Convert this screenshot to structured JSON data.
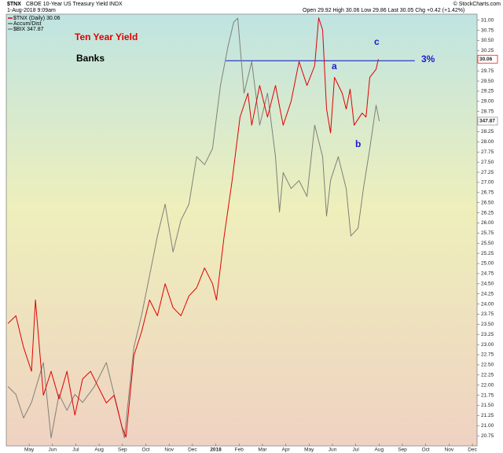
{
  "chart_data": {
    "type": "line",
    "symbol": "$TNX",
    "title": "CBOE 10-Year US Treasury Yield INDX",
    "date": "1-Aug-2018 9:09am",
    "quote": "Open 29.92  High 30.06  Low 29.86  Last 30.05  Chg +0.42 (+1.42%)",
    "credit": "© StockCharts.com",
    "legend_entries": [
      "$TNX (Daily) 30.06",
      "Accum/Dist",
      "$BIX 347.87"
    ],
    "last_value_tags": [
      "30.06",
      "347.87"
    ],
    "annotations": [
      {
        "text": "Ten Year Yield",
        "color": "#e00000"
      },
      {
        "text": "Banks",
        "color": "#000000"
      },
      {
        "text": "a",
        "color": "#1a1ad0"
      },
      {
        "text": "b",
        "color": "#1a1ad0"
      },
      {
        "text": "c",
        "color": "#1a1ad0"
      },
      {
        "text": "3%",
        "color": "#1a1ad0"
      }
    ],
    "reference_line": {
      "value": 30,
      "x": [
        8.43,
        16.53
      ],
      "color": "#2a3acc"
    },
    "xlim": [
      -0.98,
      19.2
    ],
    "xticks": [
      {
        "value": 0,
        "label": "May"
      },
      {
        "value": 1,
        "label": "Jun"
      },
      {
        "value": 2,
        "label": "Jul"
      },
      {
        "value": 3,
        "label": "Aug"
      },
      {
        "value": 4,
        "label": "Sep"
      },
      {
        "value": 5,
        "label": "Oct"
      },
      {
        "value": 6,
        "label": "Nov"
      },
      {
        "value": 7,
        "label": "Dec"
      },
      {
        "value": 8,
        "label": "2018"
      },
      {
        "value": 9,
        "label": "Feb"
      },
      {
        "value": 10,
        "label": "Mar"
      },
      {
        "value": 11,
        "label": "Apr"
      },
      {
        "value": 12,
        "label": "May"
      },
      {
        "value": 13,
        "label": "Jun"
      },
      {
        "value": 14,
        "label": "Jul"
      },
      {
        "value": 15,
        "label": "Aug"
      },
      {
        "value": 16,
        "label": "Sep"
      },
      {
        "value": 17,
        "label": "Oct"
      },
      {
        "value": 18,
        "label": "Nov"
      },
      {
        "value": 19,
        "label": "Dec"
      }
    ],
    "ylim": [
      20.5,
      31.15
    ],
    "yticks": [
      20.75,
      {
        "value": 21,
        "label": "21.00"
      },
      21.25,
      {
        "value": 21.5,
        "label": "21.50"
      },
      21.75,
      {
        "value": 22,
        "label": "22.00"
      },
      22.25,
      {
        "value": 22.5,
        "label": "22.50"
      },
      22.75,
      {
        "value": 23,
        "label": "23.00"
      },
      23.25,
      {
        "value": 23.5,
        "label": "23.50"
      },
      23.75,
      {
        "value": 24,
        "label": "24.00"
      },
      24.25,
      {
        "value": 24.5,
        "label": "24.50"
      },
      24.75,
      {
        "value": 25,
        "label": "25.00"
      },
      25.25,
      {
        "value": 25.5,
        "label": "25.50"
      },
      25.75,
      {
        "value": 26,
        "label": "26.00"
      },
      26.25,
      {
        "value": 26.5,
        "label": "26.50"
      },
      26.75,
      {
        "value": 27,
        "label": "27.00"
      },
      27.25,
      {
        "value": 27.5,
        "label": "27.50"
      },
      27.75,
      {
        "value": 28,
        "label": "28.00"
      },
      28.25,
      {
        "value": 28.5,
        "label": "28.50"
      },
      28.75,
      {
        "value": 29,
        "label": "29.00"
      },
      29.25,
      {
        "value": 29.5,
        "label": "29.50"
      },
      29.75,
      {
        "value": 30,
        "label": "30.00"
      },
      30.25,
      {
        "value": 30.5,
        "label": "30.50"
      },
      30.75,
      {
        "value": 31,
        "label": "31.00"
      }
    ],
    "y2lim": [
      250,
      380
    ],
    "series": [
      {
        "name": "$TNX",
        "color": "#e00000",
        "x": [
          -0.91,
          -0.57,
          -0.24,
          0.1,
          0.27,
          0.61,
          0.94,
          1.28,
          1.62,
          1.96,
          2.29,
          2.63,
          2.97,
          3.31,
          3.64,
          3.98,
          4.15,
          4.49,
          4.82,
          5.16,
          5.5,
          5.83,
          6.17,
          6.51,
          6.85,
          7.18,
          7.52,
          7.86,
          8.03,
          8.36,
          8.7,
          9.04,
          9.38,
          9.54,
          9.88,
          10.22,
          10.56,
          10.89,
          11.23,
          11.57,
          11.91,
          12.24,
          12.41,
          12.58,
          12.75,
          12.92,
          13.09,
          13.42,
          13.59,
          13.76,
          13.93,
          14.27,
          14.44,
          14.6,
          14.87,
          14.97
        ],
        "values": [
          23.52,
          23.71,
          22.93,
          22.34,
          24.1,
          21.75,
          22.34,
          21.66,
          22.34,
          21.26,
          22.15,
          22.34,
          21.95,
          21.56,
          21.75,
          20.97,
          20.72,
          22.73,
          23.32,
          24.1,
          23.71,
          24.5,
          23.91,
          23.71,
          24.2,
          24.4,
          24.89,
          24.5,
          24.1,
          25.67,
          27.04,
          28.61,
          29.2,
          28.41,
          29.39,
          28.61,
          29.39,
          28.41,
          29.0,
          29.98,
          29.39,
          29.88,
          31.06,
          30.76,
          28.81,
          28.22,
          29.59,
          29.2,
          28.81,
          29.3,
          28.41,
          28.71,
          28.61,
          29.59,
          29.79,
          30.04
        ]
      },
      {
        "name": "$BIX",
        "color": "#808078",
        "axis": "y2",
        "x": [
          -0.91,
          -0.57,
          -0.24,
          0.1,
          0.61,
          0.94,
          1.28,
          1.62,
          1.96,
          2.29,
          2.8,
          3.31,
          3.81,
          4.08,
          4.49,
          4.82,
          5.16,
          5.5,
          5.83,
          6.17,
          6.51,
          6.85,
          7.18,
          7.52,
          7.86,
          8.2,
          8.53,
          8.77,
          8.94,
          9.21,
          9.54,
          9.88,
          10.22,
          10.56,
          10.73,
          10.89,
          11.23,
          11.57,
          11.91,
          12.24,
          12.58,
          12.75,
          12.92,
          13.25,
          13.59,
          13.79,
          14.1,
          14.33,
          14.6,
          14.87,
          15.01
        ],
        "values": [
          267.9,
          265.5,
          258.4,
          263.1,
          275.1,
          252.4,
          265.5,
          260.7,
          265.5,
          263.1,
          267.9,
          275.1,
          260.7,
          252.4,
          279.8,
          289.4,
          301.3,
          313.2,
          322.8,
          308.4,
          318.0,
          322.8,
          337.1,
          334.7,
          339.5,
          358.5,
          370.5,
          377.6,
          378.8,
          356.2,
          365.7,
          346.6,
          356.2,
          337.1,
          320.4,
          332.3,
          327.5,
          329.9,
          325.1,
          346.6,
          337.1,
          319.2,
          330.0,
          337.1,
          327.5,
          313.2,
          315.6,
          327.5,
          339.5,
          352.6,
          347.8
        ]
      }
    ]
  }
}
